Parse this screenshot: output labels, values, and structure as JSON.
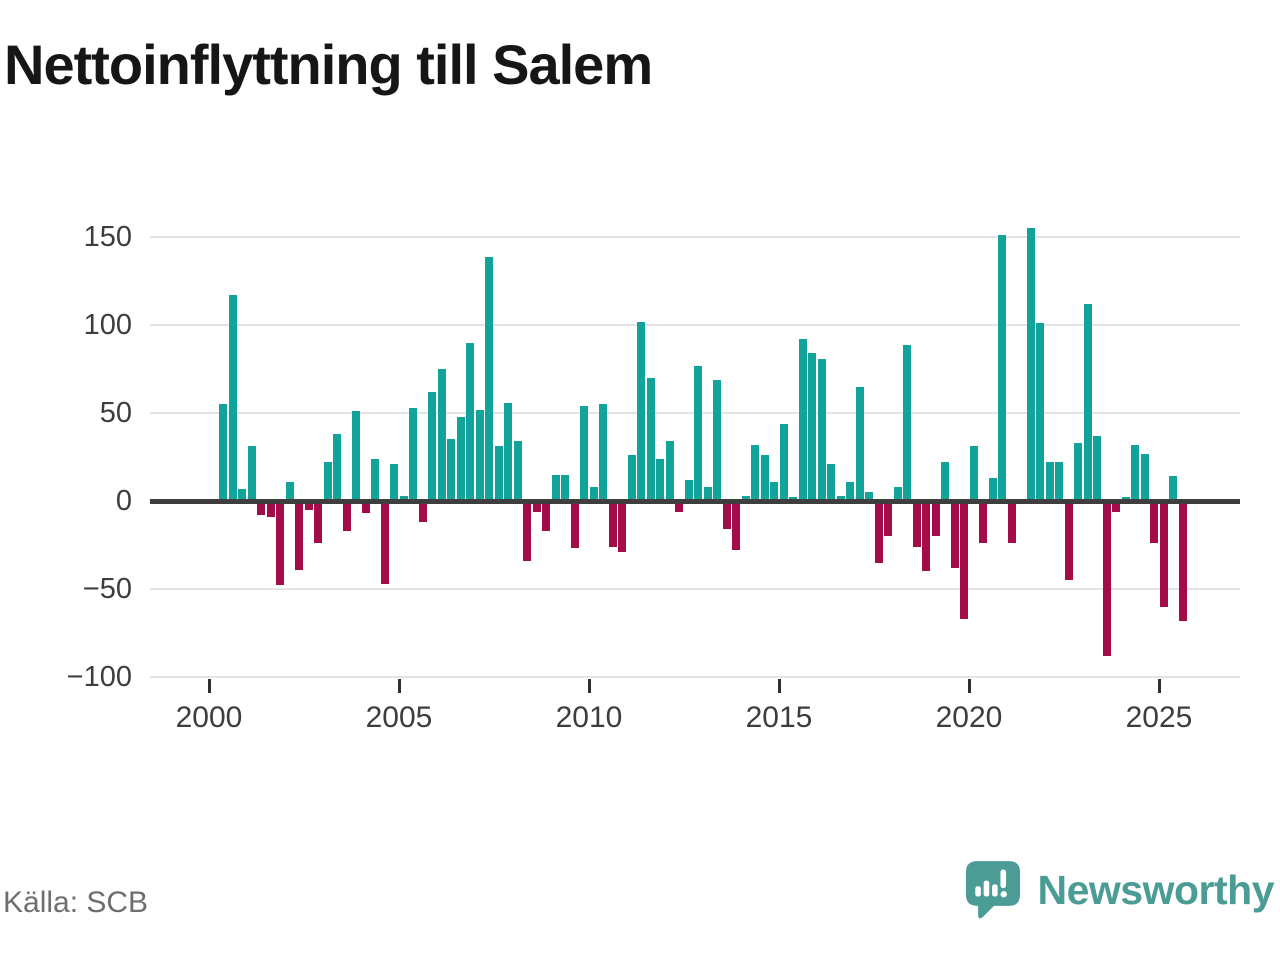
{
  "title": "Nettoinflyttning till Salem",
  "source": "Källa: SCB",
  "brand": {
    "name": "Newsworthy",
    "color": "#4a9c94",
    "icon": "newsworthy-speech-bubble-chart-icon"
  },
  "chart_data": {
    "type": "bar",
    "title": "Nettoinflyttning till Salem",
    "xlabel": "",
    "ylabel": "",
    "ylim": [
      -100,
      150
    ],
    "yticks": [
      150,
      100,
      50,
      0,
      -50,
      -100
    ],
    "xticks": [
      2000,
      2005,
      2010,
      2015,
      2020,
      2025
    ],
    "grid": "horizontal",
    "legend": "none",
    "positive_color": "#12a39b",
    "negative_color": "#a10c49",
    "x_unit": "quarter",
    "quarters": [
      "2000Q2",
      "2000Q3",
      "2000Q4",
      "2001Q1",
      "2001Q2",
      "2001Q3",
      "2001Q4",
      "2002Q1",
      "2002Q2",
      "2002Q3",
      "2002Q4",
      "2003Q1",
      "2003Q2",
      "2003Q3",
      "2003Q4",
      "2004Q1",
      "2004Q2",
      "2004Q3",
      "2004Q4",
      "2005Q1",
      "2005Q2",
      "2005Q3",
      "2005Q4",
      "2006Q1",
      "2006Q2",
      "2006Q3",
      "2006Q4",
      "2007Q1",
      "2007Q2",
      "2007Q3",
      "2007Q4",
      "2008Q1",
      "2008Q2",
      "2008Q3",
      "2008Q4",
      "2009Q1",
      "2009Q2",
      "2009Q3",
      "2009Q4",
      "2010Q1",
      "2010Q2",
      "2010Q3",
      "2010Q4",
      "2011Q1",
      "2011Q2",
      "2011Q3",
      "2011Q4",
      "2012Q1",
      "2012Q2",
      "2012Q3",
      "2012Q4",
      "2013Q1",
      "2013Q2",
      "2013Q3",
      "2013Q4",
      "2014Q1",
      "2014Q2",
      "2014Q3",
      "2014Q4",
      "2015Q1",
      "2015Q2",
      "2015Q3",
      "2015Q4",
      "2016Q1",
      "2016Q2",
      "2016Q3",
      "2016Q4",
      "2017Q1",
      "2017Q2",
      "2017Q3",
      "2017Q4",
      "2018Q1",
      "2018Q2",
      "2018Q3",
      "2018Q4",
      "2019Q1",
      "2019Q2",
      "2019Q3",
      "2019Q4",
      "2020Q1",
      "2020Q2",
      "2020Q3",
      "2020Q4",
      "2021Q1",
      "2021Q2",
      "2021Q3",
      "2021Q4",
      "2022Q1",
      "2022Q2",
      "2022Q3",
      "2022Q4",
      "2023Q1",
      "2023Q2",
      "2023Q3",
      "2023Q4",
      "2024Q1",
      "2024Q2",
      "2024Q3",
      "2024Q4",
      "2025Q1",
      "2025Q2",
      "2025Q3"
    ],
    "values": [
      55,
      117,
      7,
      31,
      -8,
      -9,
      -48,
      11,
      -39,
      -5,
      -24,
      22,
      38,
      -17,
      51,
      -7,
      24,
      -47,
      21,
      3,
      53,
      -12,
      62,
      75,
      35,
      48,
      90,
      52,
      139,
      31,
      56,
      34,
      -34,
      -6,
      -17,
      15,
      15,
      -27,
      54,
      8,
      55,
      -26,
      -29,
      26,
      102,
      70,
      24,
      34,
      -6,
      12,
      77,
      8,
      69,
      -16,
      -28,
      3,
      32,
      26,
      11,
      44,
      2,
      92,
      84,
      81,
      21,
      3,
      11,
      65,
      5,
      -35,
      -20,
      8,
      89,
      -26,
      -40,
      -20,
      22,
      -38,
      -67,
      31,
      -24,
      13,
      151,
      -24,
      0,
      155,
      101,
      22,
      22,
      -45,
      33,
      112,
      37,
      -88,
      -6,
      2,
      32,
      27,
      -24,
      -60,
      14,
      -68
    ]
  }
}
